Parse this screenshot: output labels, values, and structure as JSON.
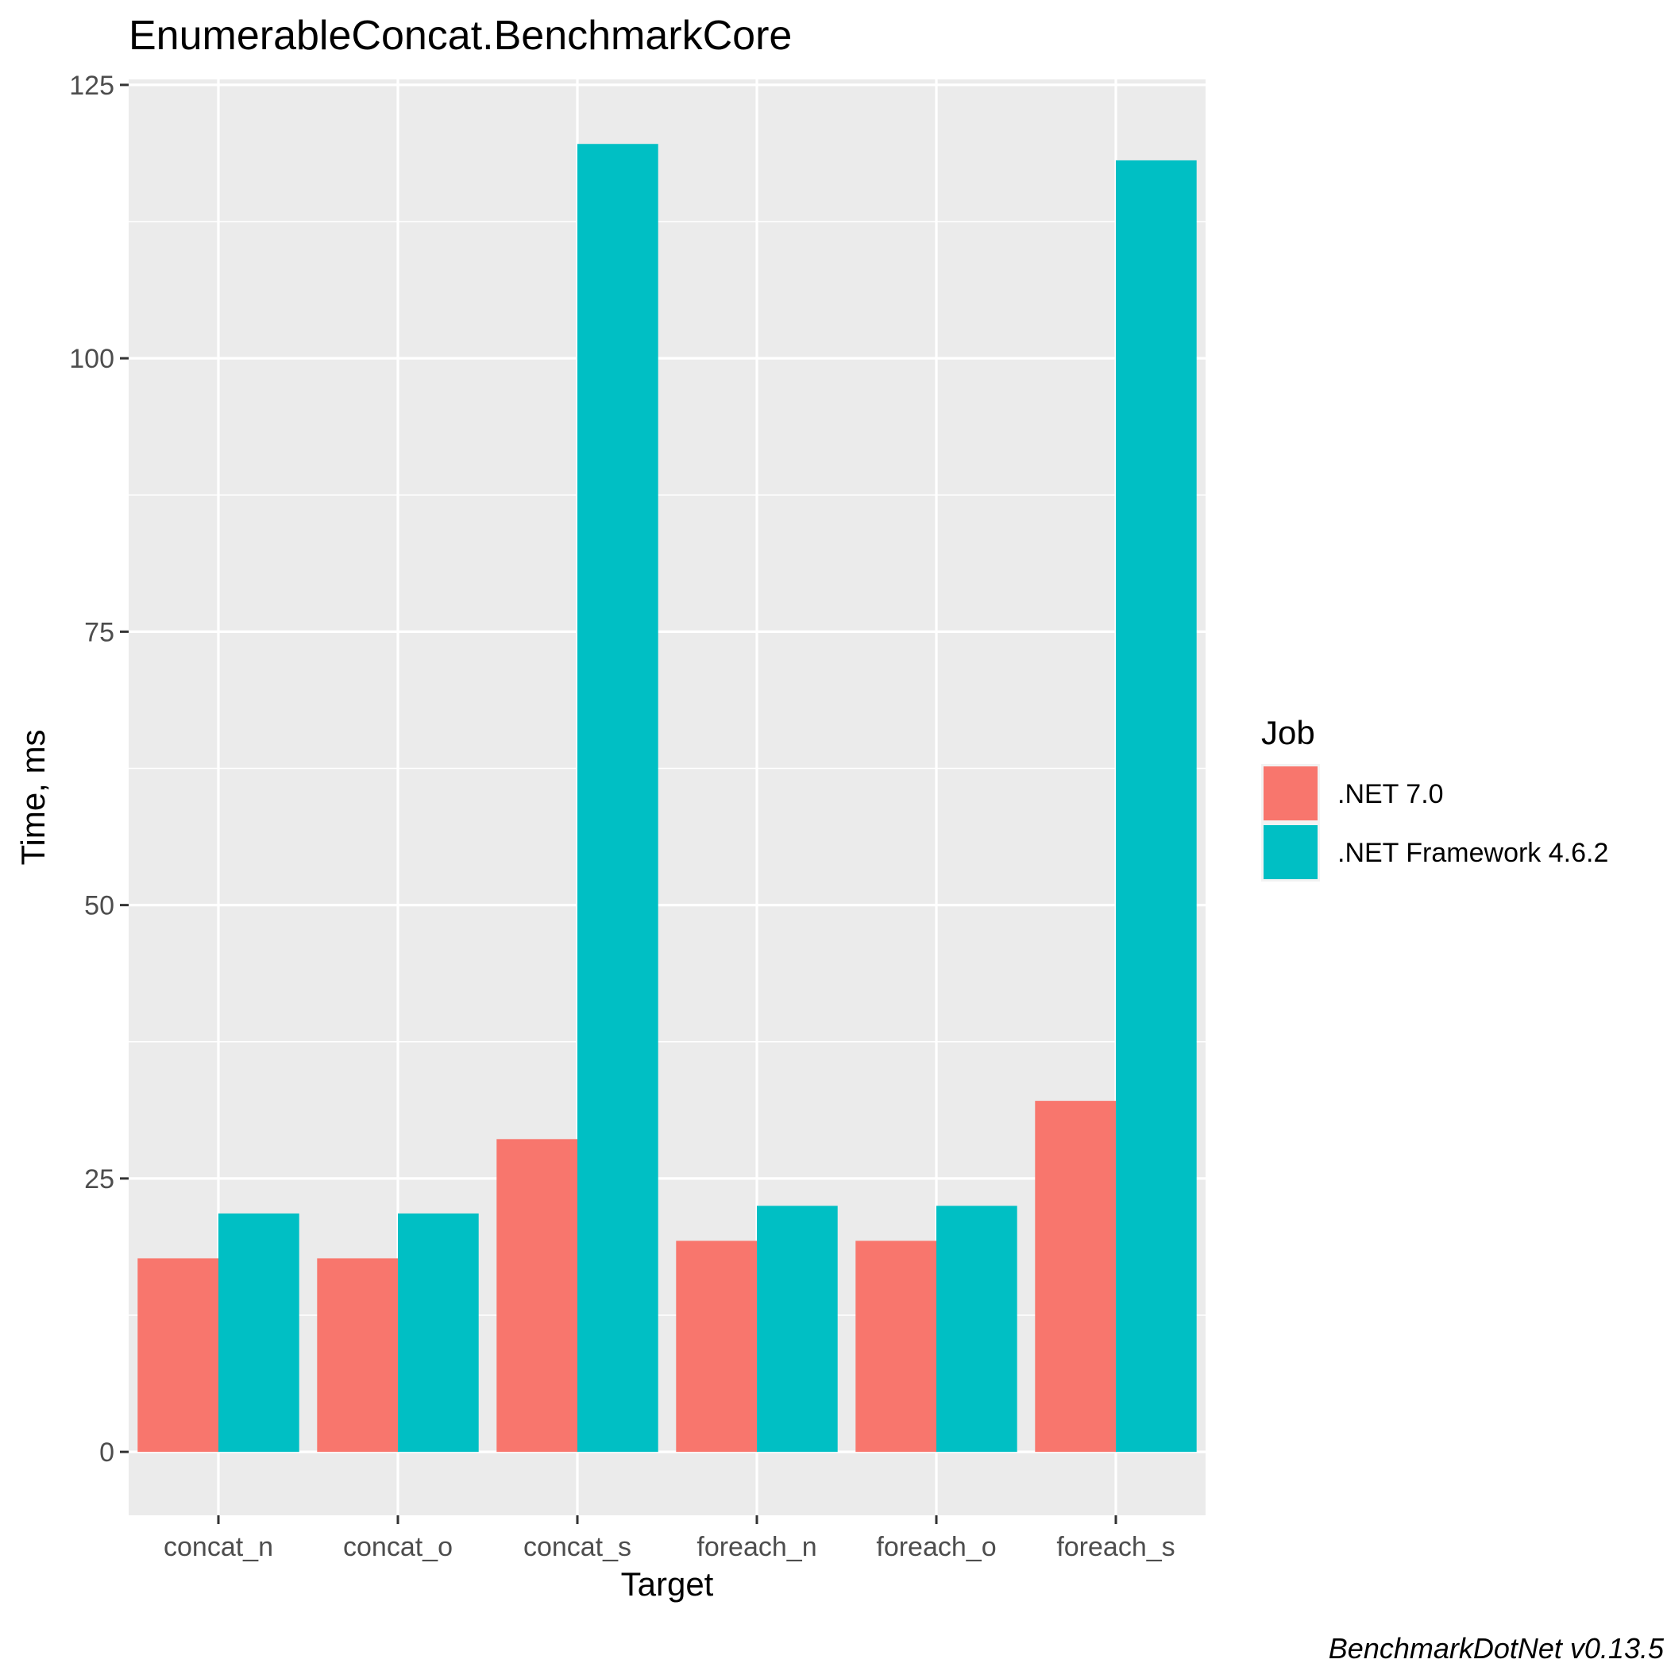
{
  "chart_data": {
    "type": "bar",
    "title": "EnumerableConcat.BenchmarkCore",
    "xlabel": "Target",
    "ylabel": "Time, ms",
    "caption": "BenchmarkDotNet v0.13.5",
    "categories": [
      "concat_n",
      "concat_o",
      "concat_s",
      "foreach_n",
      "foreach_o",
      "foreach_s"
    ],
    "series": [
      {
        "name": ".NET 7.0",
        "color": "#F8766D",
        "values": [
          17.7,
          17.7,
          28.6,
          19.3,
          19.3,
          32.1
        ]
      },
      {
        "name": ".NET Framework 4.6.2",
        "color": "#00BFC4",
        "values": [
          21.8,
          21.8,
          119.6,
          22.5,
          22.5,
          118.1
        ]
      }
    ],
    "ylim": [
      -5.8,
      125.5
    ],
    "yticks": [
      0,
      25,
      50,
      75,
      100,
      125
    ],
    "legend_title": "Job",
    "legend_position": "right",
    "grid": true,
    "panel_background": "#EBEBEB"
  }
}
